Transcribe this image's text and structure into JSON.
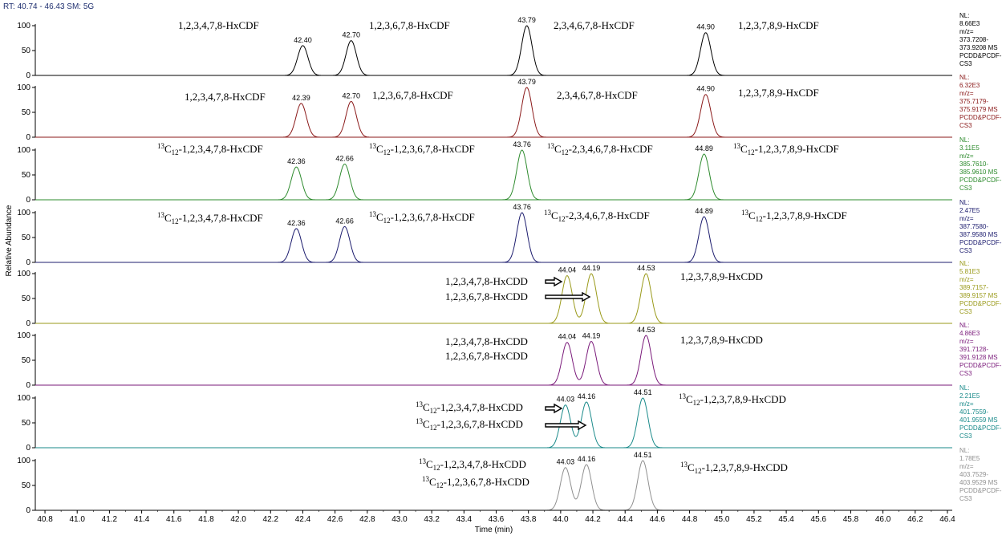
{
  "header": {
    "rt_sm": "RT: 40.74 - 46.43   SM: 5G"
  },
  "chart_data": {
    "type": "line",
    "xlabel": "Time (min)",
    "ylabel": "Relative Abundance",
    "xlim": [
      40.74,
      46.43
    ],
    "ylim": [
      0,
      100
    ],
    "xticks": [
      "40.8",
      "41.0",
      "41.2",
      "41.4",
      "41.6",
      "41.8",
      "42.0",
      "42.2",
      "42.4",
      "42.6",
      "42.8",
      "43.0",
      "43.2",
      "43.4",
      "43.6",
      "43.8",
      "44.0",
      "44.2",
      "44.4",
      "44.6",
      "44.8",
      "45.0",
      "45.2",
      "45.4",
      "45.6",
      "45.8",
      "46.0",
      "46.2",
      "46.4"
    ],
    "yticks": [
      "0",
      "50",
      "100"
    ],
    "panels": [
      {
        "color": "#000000",
        "peaks": [
          {
            "rt": 42.4,
            "height": 60,
            "label": "42.40"
          },
          {
            "rt": 42.7,
            "height": 70,
            "label": "42.70"
          },
          {
            "rt": 43.79,
            "height": 100,
            "label": "43.79"
          },
          {
            "rt": 44.9,
            "height": 86,
            "label": "44.90"
          }
        ],
        "info": [
          "NL:",
          "8.66E3",
          "m/z=",
          "373.7208-",
          "373.9208  MS",
          "PCDD&PCDF-",
          "CS3"
        ],
        "annotations": [
          {
            "pre": "",
            "sup": "",
            "sub": "",
            "text": "1,2,3,4,7,8-HxCDF"
          },
          {
            "pre": "",
            "sup": "",
            "sub": "",
            "text": "1,2,3,6,7,8-HxCDF"
          },
          {
            "pre": "",
            "sup": "",
            "sub": "",
            "text": "2,3,4,6,7,8-HxCDF"
          },
          {
            "pre": "",
            "sup": "",
            "sub": "",
            "text": "1,2,3,7,8,9-HxCDF"
          }
        ]
      },
      {
        "color": "#8b1a1a",
        "peaks": [
          {
            "rt": 42.39,
            "height": 68,
            "label": "42.39"
          },
          {
            "rt": 42.7,
            "height": 72,
            "label": "42.70"
          },
          {
            "rt": 43.79,
            "height": 100,
            "label": "43.79"
          },
          {
            "rt": 44.9,
            "height": 86,
            "label": "44.90"
          }
        ],
        "info": [
          "NL:",
          "6.32E3",
          "m/z=",
          "375.7179-",
          "375.9179  MS",
          "PCDD&PCDF-",
          "CS3"
        ],
        "annotations": [
          {
            "pre": "",
            "sup": "",
            "sub": "",
            "text": "1,2,3,4,7,8-HxCDF"
          },
          {
            "pre": "",
            "sup": "",
            "sub": "",
            "text": "1,2,3,6,7,8-HxCDF"
          },
          {
            "pre": "",
            "sup": "",
            "sub": "",
            "text": "2,3,4,6,7,8-HxCDF"
          },
          {
            "pre": "",
            "sup": "",
            "sub": "",
            "text": "1,2,3,7,8,9-HxCDF"
          }
        ]
      },
      {
        "color": "#2e8b2e",
        "peaks": [
          {
            "rt": 42.36,
            "height": 66,
            "label": "42.36"
          },
          {
            "rt": 42.66,
            "height": 72,
            "label": "42.66"
          },
          {
            "rt": 43.76,
            "height": 100,
            "label": "43.76"
          },
          {
            "rt": 44.89,
            "height": 92,
            "label": "44.89"
          }
        ],
        "info": [
          "NL:",
          "3.11E5",
          "m/z=",
          "385.7610-",
          "385.9610  MS",
          "PCDD&PCDF-",
          "CS3"
        ],
        "annotations": [
          {
            "pre": "",
            "sup": "13",
            "sub": "12",
            "text": "-1,2,3,4,7,8-HxCDF"
          },
          {
            "pre": "",
            "sup": "13",
            "sub": "12",
            "text": "-1,2,3,6,7,8-HxCDF"
          },
          {
            "pre": "",
            "sup": "13",
            "sub": "12",
            "text": "-2,3,4,6,7,8-HxCDF"
          },
          {
            "pre": "",
            "sup": "13",
            "sub": "12",
            "text": "-1,2,3,7,8,9-HxCDF"
          }
        ]
      },
      {
        "color": "#1c1c6e",
        "peaks": [
          {
            "rt": 42.36,
            "height": 68,
            "label": "42.36"
          },
          {
            "rt": 42.66,
            "height": 72,
            "label": "42.66"
          },
          {
            "rt": 43.76,
            "height": 100,
            "label": "43.76"
          },
          {
            "rt": 44.89,
            "height": 92,
            "label": "44.89"
          }
        ],
        "info": [
          "NL:",
          "2.47E5",
          "m/z=",
          "387.7580-",
          "387.9580  MS",
          "PCDD&PCDF-",
          "CS3"
        ],
        "annotations": [
          {
            "pre": "",
            "sup": "13",
            "sub": "12",
            "text": "-1,2,3,4,7,8-HxCDF"
          },
          {
            "pre": "",
            "sup": "13",
            "sub": "12",
            "text": "-1,2,3,6,7,8-HxCDF"
          },
          {
            "pre": "",
            "sup": "13",
            "sub": "12",
            "text": "-2,3,4,6,7,8-HxCDF"
          },
          {
            "pre": "",
            "sup": "13",
            "sub": "12",
            "text": "-1,2,3,7,8,9-HxCDF"
          }
        ]
      },
      {
        "color": "#9a9a1a",
        "peaks": [
          {
            "rt": 44.04,
            "height": 96,
            "label": "44.04"
          },
          {
            "rt": 44.19,
            "height": 100,
            "label": "44.19"
          },
          {
            "rt": 44.53,
            "height": 100,
            "label": "44.53"
          }
        ],
        "info": [
          "NL:",
          "5.81E3",
          "m/z=",
          "389.7157-",
          "389.9157  MS",
          "PCDD&PCDF-",
          "CS3"
        ],
        "annotations": [
          {
            "pre": "",
            "sup": "",
            "sub": "",
            "text": "1,2,3,4,7,8-HxCDD"
          },
          {
            "pre": "",
            "sup": "",
            "sub": "",
            "text": "1,2,3,6,7,8-HxCDD"
          },
          {
            "pre": "",
            "sup": "",
            "sub": "",
            "text": "1,2,3,7,8,9-HxCDD"
          }
        ]
      },
      {
        "color": "#7a1a7a",
        "peaks": [
          {
            "rt": 44.04,
            "height": 86,
            "label": "44.04"
          },
          {
            "rt": 44.19,
            "height": 88,
            "label": "44.19"
          },
          {
            "rt": 44.53,
            "height": 100,
            "label": "44.53"
          }
        ],
        "info": [
          "NL:",
          "4.86E3",
          "m/z=",
          "391.7128-",
          "391.9128  MS",
          "PCDD&PCDF-",
          "CS3"
        ],
        "annotations": [
          {
            "pre": "",
            "sup": "",
            "sub": "",
            "text": "1,2,3,4,7,8-HxCDD"
          },
          {
            "pre": "",
            "sup": "",
            "sub": "",
            "text": "1,2,3,6,7,8-HxCDD"
          },
          {
            "pre": "",
            "sup": "",
            "sub": "",
            "text": "1,2,3,7,8,9-HxCDD"
          }
        ]
      },
      {
        "color": "#1a8a8a",
        "peaks": [
          {
            "rt": 44.03,
            "height": 86,
            "label": "44.03"
          },
          {
            "rt": 44.16,
            "height": 92,
            "label": "44.16"
          },
          {
            "rt": 44.51,
            "height": 100,
            "label": "44.51"
          }
        ],
        "info": [
          "NL:",
          "2.21E5",
          "m/z=",
          "401.7559-",
          "401.9559  MS",
          "PCDD&PCDF-",
          "CS3"
        ],
        "annotations": [
          {
            "pre": "",
            "sup": "13",
            "sub": "12",
            "text": "-1,2,3,4,7,8-HxCDD"
          },
          {
            "pre": "",
            "sup": "13",
            "sub": "12",
            "text": "-1,2,3,6,7,8-HxCDD"
          },
          {
            "pre": "",
            "sup": "13",
            "sub": "12",
            "text": "-1,2,3,7,8,9-HxCDD"
          }
        ]
      },
      {
        "color": "#909090",
        "peaks": [
          {
            "rt": 44.03,
            "height": 86,
            "label": "44.03"
          },
          {
            "rt": 44.16,
            "height": 92,
            "label": "44.16"
          },
          {
            "rt": 44.51,
            "height": 100,
            "label": "44.51"
          }
        ],
        "info": [
          "NL:",
          "1.78E5",
          "m/z=",
          "403.7529-",
          "403.9529  MS",
          "PCDD&PCDF-",
          "CS3"
        ],
        "annotations": [
          {
            "pre": "",
            "sup": "13",
            "sub": "12",
            "text": "-1,2,3,4,7,8-HxCDD"
          },
          {
            "pre": "",
            "sup": "13",
            "sub": "12",
            "text": "-1,2,3,6,7,8-HxCDD"
          },
          {
            "pre": "",
            "sup": "13",
            "sub": "12",
            "text": "-1,2,3,7,8,9-HxCDD"
          }
        ]
      }
    ]
  }
}
